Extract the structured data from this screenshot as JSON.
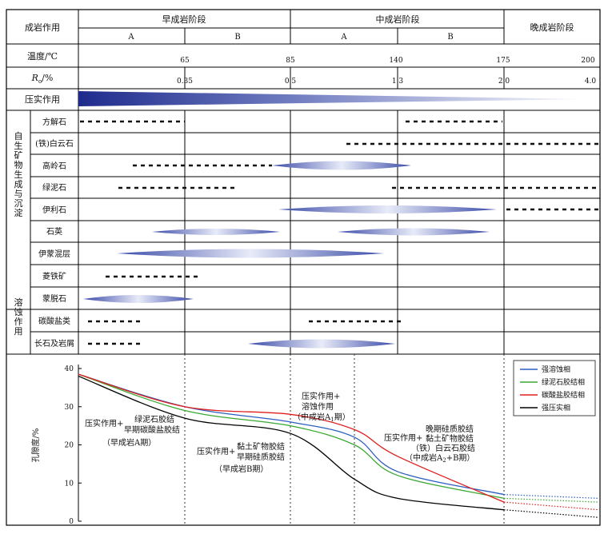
{
  "header": {
    "row_title": "成岩作用",
    "stage_early": "早成岩阶段",
    "stage_middle": "中成岩阶段",
    "stage_late": "晚成岩阶段",
    "sub_early_a": "A",
    "sub_early_b": "B",
    "sub_middle_a": "A",
    "sub_middle_b": "B"
  },
  "temperature": {
    "label": "温度/℃",
    "ticks": [
      "65",
      "85",
      "140",
      "175",
      "200"
    ]
  },
  "ro": {
    "label_main": "R",
    "label_sub": "o",
    "label_unit": "/%",
    "ticks": [
      "0.35",
      "0.5",
      "1.3",
      "2.0",
      "4.0"
    ]
  },
  "compaction": {
    "label": "压实作用"
  },
  "authigenic": {
    "group_label": "自生矿物生成与沉淀",
    "minerals": [
      "方解石",
      "(铁)白云石",
      "高岭石",
      "绿泥石",
      "伊利石",
      "石英",
      "伊蒙混层",
      "菱铁矿",
      "蒙脱石"
    ]
  },
  "dissolution": {
    "group_label": "溶蚀作用",
    "items": [
      "碳酸盐类",
      "长石及岩屑"
    ]
  },
  "porosity_chart": {
    "ylabel": "孔隙度/%",
    "yticks": [
      "0",
      "10",
      "20",
      "30",
      "40"
    ],
    "annotations": {
      "early_a": [
        "压实作用+",
        "绿泥石胶结",
        "早期碳酸盐胶结",
        "（早成岩A期）"
      ],
      "early_b": [
        "压实作用+",
        "黏土矿物胶结",
        "早期硅质胶结",
        "（早成岩B期）"
      ],
      "middle_a": [
        "压实作用+",
        "溶蚀作用",
        "（中成岩A",
        "1",
        "期）"
      ],
      "middle_b": [
        "压实作用+",
        "晚期硅质胶结",
        "黏土矿物胶结",
        "（铁）白云石胶结",
        "（中成岩A",
        "2",
        "+B期）"
      ]
    },
    "legend": [
      {
        "name": "强溶蚀相",
        "color": "#2b5fbf"
      },
      {
        "name": "绿泥石胶结相",
        "color": "#3aa832"
      },
      {
        "name": "碳酸盐胶结相",
        "color": "#e01e1e"
      },
      {
        "name": "强压实相",
        "color": "#000000"
      }
    ]
  },
  "chart_data": {
    "type": "line",
    "ylabel": "孔隙度/%",
    "ylim": [
      0,
      40
    ],
    "x_stages": [
      "早成岩A",
      "早成岩B",
      "中成岩A1",
      "中成岩A2",
      "中成岩B",
      "晚成岩"
    ],
    "series": [
      {
        "name": "强溶蚀相",
        "x": [
          0,
          1,
          2,
          3,
          4,
          5,
          6
        ],
        "values": [
          38.5,
          30,
          26,
          22,
          13,
          7,
          6
        ]
      },
      {
        "name": "绿泥石胶结相",
        "x": [
          0,
          1,
          2,
          3,
          4,
          5,
          6
        ],
        "values": [
          38.5,
          29,
          25,
          20,
          12,
          6,
          5
        ]
      },
      {
        "name": "碳酸盐胶结相",
        "x": [
          0,
          1,
          2,
          3,
          4,
          5,
          6
        ],
        "values": [
          38.5,
          30,
          28,
          24,
          17,
          5,
          3
        ]
      },
      {
        "name": "强压实相",
        "x": [
          0,
          1,
          2,
          3,
          4,
          5,
          6
        ],
        "values": [
          38,
          27,
          23,
          11,
          6,
          3,
          1
        ]
      }
    ]
  }
}
